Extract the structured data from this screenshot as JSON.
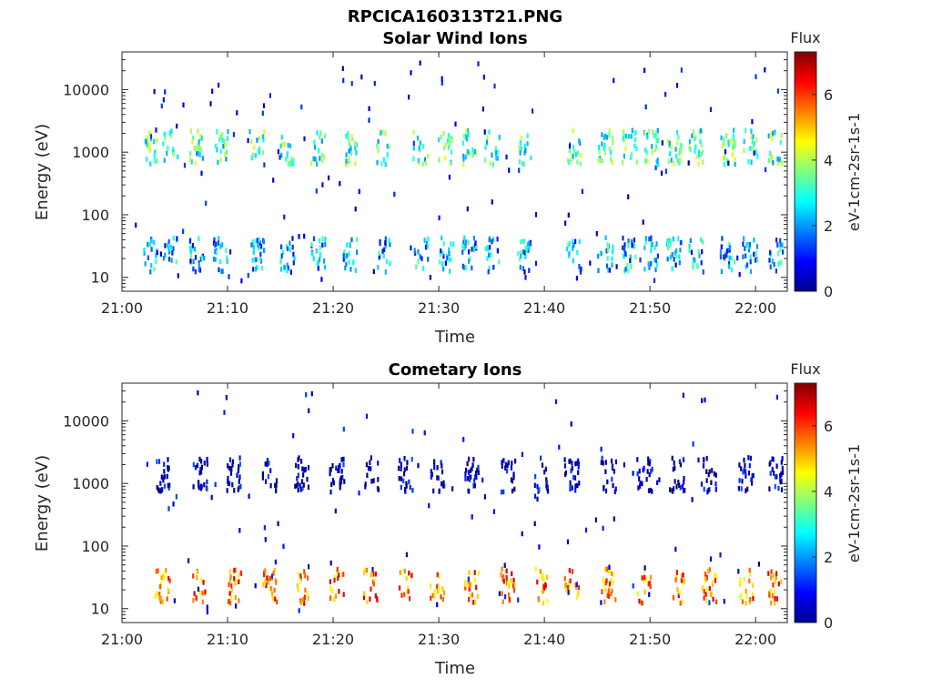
{
  "figure_title": "RPCICA160313T21.PNG",
  "chart_data": [
    {
      "type": "heatmap",
      "title": "Solar Wind Ions",
      "xlabel": "Time",
      "ylabel": "Energy (eV)",
      "yscale": "log",
      "ylim": [
        6,
        40000
      ],
      "xlim": [
        "21:00",
        "22:03"
      ],
      "x_ticks": [
        "21:00",
        "21:10",
        "21:20",
        "21:30",
        "21:40",
        "21:50",
        "22:00"
      ],
      "y_ticks": [
        "10",
        "100",
        "1000",
        "10000"
      ],
      "colorbar": {
        "label": "Flux",
        "units": "eV-1cm-2sr-1s-1",
        "range": [
          0,
          7.3
        ],
        "ticks": [
          "0",
          "2",
          "4",
          "6"
        ],
        "colormap": "jet"
      },
      "grid": false,
      "scan_minutes": [
        2.7,
        4.5,
        7.0,
        9.3,
        12.7,
        15.6,
        18.5,
        21.5,
        24.7,
        28.2,
        30.6,
        32.8,
        35.0,
        38.0,
        42.7,
        45.7,
        48.0,
        50.0,
        52.2,
        54.3,
        57.3,
        59.4,
        61.8
      ],
      "populations": [
        {
          "name": "",
          "energy_eV": 1300,
          "flux": 3.2
        },
        {
          "name": "",
          "energy_eV": 25,
          "flux": 2.2
        }
      ]
    },
    {
      "type": "heatmap",
      "title": "Cometary Ions",
      "xlabel": "Time",
      "ylabel": "Energy (eV)",
      "yscale": "log",
      "ylim": [
        6,
        40000
      ],
      "xlim": [
        "21:00",
        "22:03"
      ],
      "x_ticks": [
        "21:00",
        "21:10",
        "21:20",
        "21:30",
        "21:40",
        "21:50",
        "22:00"
      ],
      "y_ticks": [
        "10",
        "100",
        "1000",
        "10000"
      ],
      "colorbar": {
        "label": "Flux",
        "units": "eV-1cm-2sr-1s-1",
        "range": [
          0,
          7.3
        ],
        "ticks": [
          "0",
          "2",
          "4",
          "6"
        ],
        "colormap": "jet"
      },
      "grid": false,
      "scan_minutes": [
        3.8,
        7.3,
        10.5,
        13.9,
        17.0,
        20.3,
        23.5,
        26.8,
        29.8,
        33.0,
        36.5,
        39.6,
        42.5,
        46.0,
        49.4,
        52.5,
        55.5,
        59.0,
        61.8
      ],
      "populations": [
        {
          "name": "",
          "energy_eV": 25,
          "flux": 5.5
        },
        {
          "name": "",
          "energy_eV": 1500,
          "flux": 0.3
        }
      ]
    }
  ]
}
